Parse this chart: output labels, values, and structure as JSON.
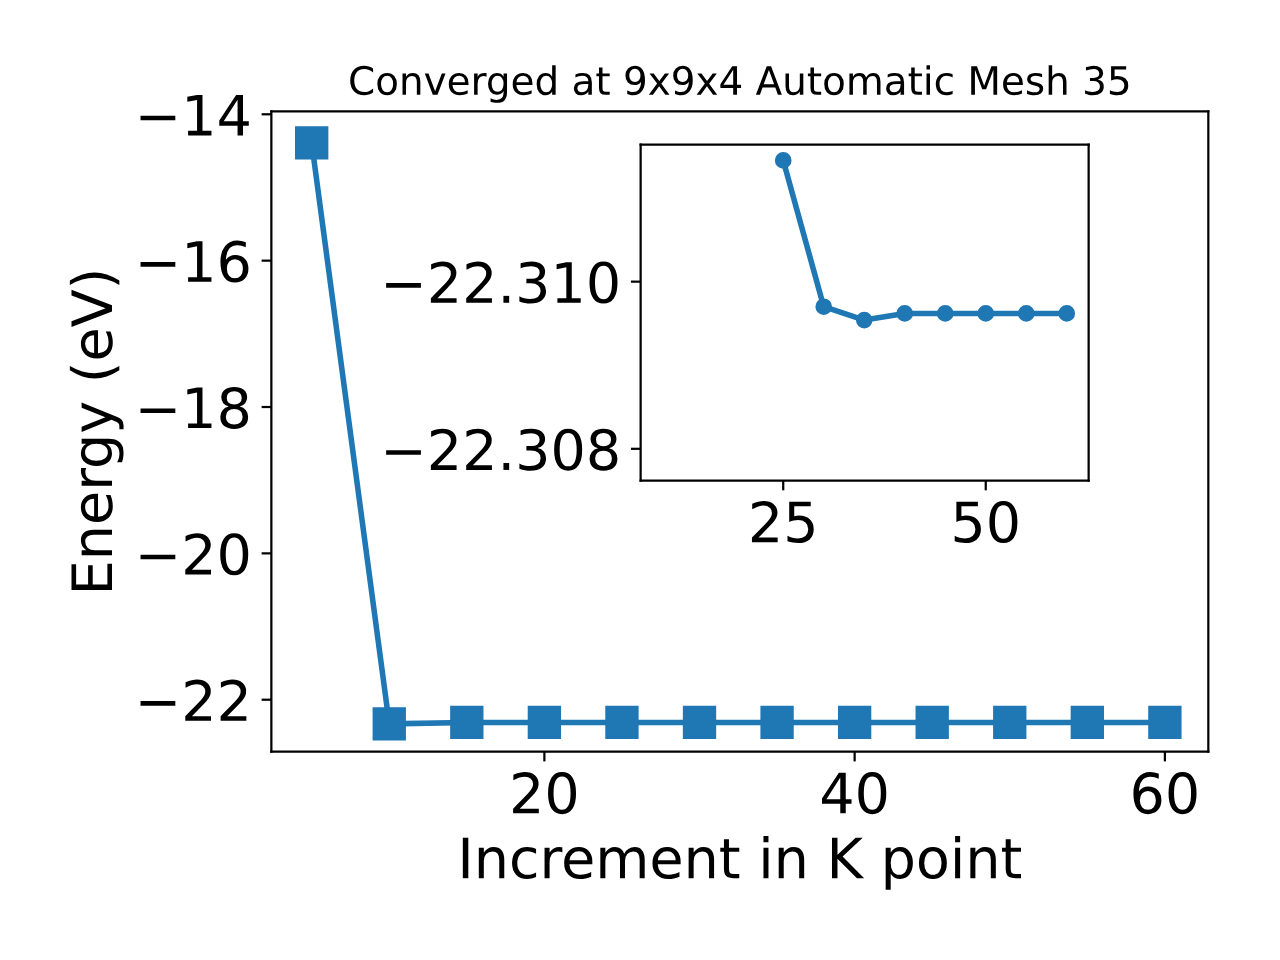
{
  "chart_data": [
    {
      "type": "line",
      "title": "Converged at 9x9x4 Automatic Mesh 35",
      "xlabel": "Increment in K point",
      "ylabel": "Energy (eV)",
      "marker": "square",
      "line_style": "solid",
      "grid": false,
      "x": [
        5,
        10,
        15,
        20,
        25,
        30,
        35,
        40,
        45,
        50,
        55,
        60
      ],
      "series": [
        {
          "color": "#1f77b4",
          "values": [
            -14.39,
            -22.33,
            -22.31,
            -22.31,
            -22.31,
            -22.31,
            -22.31,
            -22.31,
            -22.31,
            -22.31,
            -22.31,
            -22.31
          ]
        }
      ],
      "xlim": [
        2.4,
        62.8
      ],
      "xticks": [
        20,
        40,
        60
      ],
      "ylim": [
        -22.71,
        -13.96
      ],
      "yticks": [
        {
          "value": -22,
          "label": "−22"
        },
        {
          "value": -20,
          "label": "−20"
        },
        {
          "value": -18,
          "label": "−18"
        },
        {
          "value": -16,
          "label": "−16"
        },
        {
          "value": -14,
          "label": "−14"
        }
      ]
    },
    {
      "type": "line",
      "marker": "circle",
      "line_style": "solid",
      "grid": false,
      "x": [
        25,
        30,
        35,
        40,
        45,
        50,
        55,
        60
      ],
      "series": [
        {
          "color": "#1f77b4",
          "values": [
            -22.31145,
            -22.3097,
            -22.30954,
            -22.30962,
            -22.30962,
            -22.30962,
            -22.30962,
            -22.30962
          ]
        }
      ],
      "xlim": [
        7.4,
        62.7
      ],
      "xticks": [
        25,
        50
      ],
      "ylim": [
        -22.30762,
        -22.31164
      ],
      "yticks": [
        {
          "value": -22.31,
          "label": "−22.310"
        },
        {
          "value": -22.308,
          "label": "−22.308"
        }
      ]
    }
  ]
}
